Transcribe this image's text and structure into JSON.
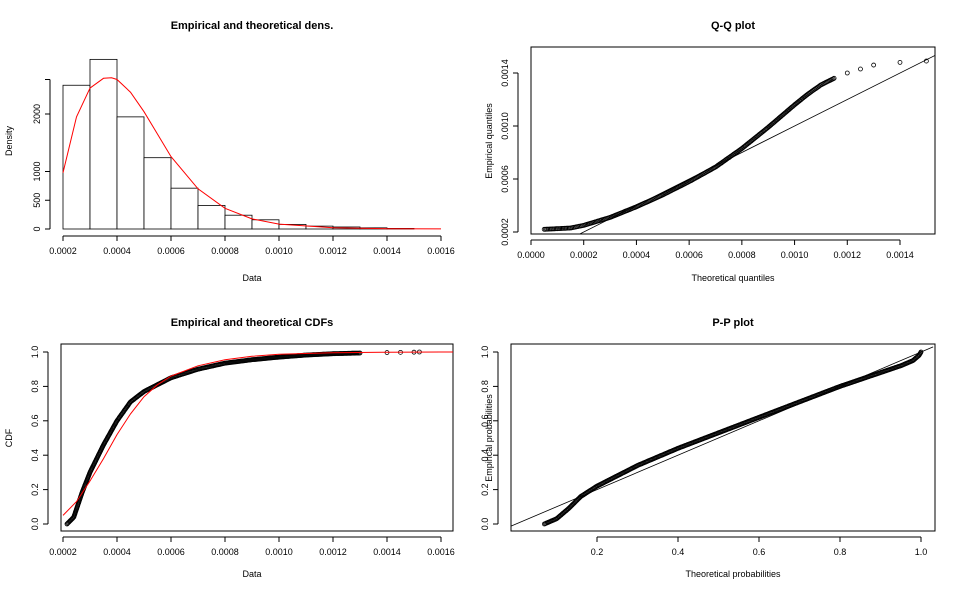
{
  "chart_data": [
    {
      "type": "bar",
      "title": "Empirical and theoretical dens.",
      "xlabel": "Data",
      "ylabel": "Density",
      "xlim": [
        0.0002,
        0.0016
      ],
      "ylim": [
        0,
        2600
      ],
      "xticks": [
        0.0002,
        0.0004,
        0.0006,
        0.0008,
        0.001,
        0.0012,
        0.0014,
        0.0016
      ],
      "xtick_labels": [
        "0.0002",
        "0.0004",
        "0.0006",
        "0.0008",
        "0.0010",
        "0.0012",
        "0.0014",
        "0.0016"
      ],
      "yticks": [
        0,
        500,
        1000,
        2000
      ],
      "ytick_labels": [
        "0",
        "500",
        "1000",
        "2000"
      ],
      "bin_edges": [
        0.0002,
        0.0003,
        0.0004,
        0.0005,
        0.0006,
        0.0007,
        0.0008,
        0.0009,
        0.001,
        0.0011,
        0.0012,
        0.0013,
        0.0014,
        0.0015
      ],
      "values": [
        2500,
        2950,
        1950,
        1240,
        710,
        410,
        240,
        160,
        80,
        50,
        35,
        20,
        10
      ],
      "density_curve": {
        "color": "#ff0000",
        "x": [
          0.0002,
          0.00025,
          0.0003,
          0.00035,
          0.00038,
          0.0004,
          0.00045,
          0.0005,
          0.00055,
          0.0006,
          0.0007,
          0.0008,
          0.0009,
          0.001,
          0.0012,
          0.0014,
          0.0016
        ],
        "y": [
          980,
          1950,
          2450,
          2620,
          2630,
          2600,
          2380,
          2040,
          1650,
          1260,
          700,
          360,
          175,
          85,
          20,
          5,
          1
        ]
      }
    },
    {
      "type": "scatter",
      "title": "Q-Q plot",
      "xlabel": "Theoretical quantiles",
      "ylabel": "Empirical quantiles",
      "xlim": [
        0.0,
        0.00155
      ],
      "ylim": [
        0.00019,
        0.00156
      ],
      "xticks": [
        0.0,
        0.0002,
        0.0004,
        0.0006,
        0.0008,
        0.001,
        0.0012,
        0.0014
      ],
      "xtick_labels": [
        "0.0000",
        "0.0002",
        "0.0004",
        "0.0006",
        "0.0008",
        "0.0010",
        "0.0012",
        "0.0014"
      ],
      "yticks": [
        0.0002,
        0.0006,
        0.001,
        0.0014
      ],
      "ytick_labels": [
        "0.0002",
        "0.0006",
        "0.0010",
        "0.0014"
      ],
      "reference_line": [
        [
          0.0,
          0.0
        ],
        [
          0.00155,
          0.00155
        ]
      ],
      "points": {
        "x": [
          5e-05,
          0.0001,
          0.00015,
          0.0002,
          0.0003,
          0.0004,
          0.0005,
          0.0006,
          0.0007,
          0.0008,
          0.0009,
          0.001,
          0.00105,
          0.0011,
          0.00115,
          0.0012,
          0.00125,
          0.0013,
          0.0014,
          0.0015
        ],
        "y": [
          0.00022,
          0.000225,
          0.00023,
          0.00025,
          0.00031,
          0.00039,
          0.00048,
          0.00058,
          0.00069,
          0.00083,
          0.00099,
          0.00116,
          0.00124,
          0.00131,
          0.00136,
          0.0014,
          0.00143,
          0.00146,
          0.00148,
          0.00149
        ]
      }
    },
    {
      "type": "scatter",
      "title": "Empirical and theoretical CDFs",
      "xlabel": "Data",
      "ylabel": "CDF",
      "xlim": [
        0.0002,
        0.0016
      ],
      "ylim": [
        0,
        1
      ],
      "xticks": [
        0.0002,
        0.0004,
        0.0006,
        0.0008,
        0.001,
        0.0012,
        0.0014,
        0.0016
      ],
      "xtick_labels": [
        "0.0002",
        "0.0004",
        "0.0006",
        "0.0008",
        "0.0010",
        "0.0012",
        "0.0014",
        "0.0016"
      ],
      "yticks": [
        0.0,
        0.2,
        0.4,
        0.6,
        0.8,
        1.0
      ],
      "ytick_labels": [
        "0.0",
        "0.2",
        "0.4",
        "0.6",
        "0.8",
        "1.0"
      ],
      "points": {
        "x": [
          0.000215,
          0.00024,
          0.00027,
          0.0003,
          0.00035,
          0.0004,
          0.00045,
          0.0005,
          0.0006,
          0.0007,
          0.0008,
          0.0009,
          0.001,
          0.0011,
          0.0012,
          0.0013,
          0.0014,
          0.00145,
          0.0015,
          0.00152
        ],
        "y": [
          0.0,
          0.04,
          0.18,
          0.3,
          0.46,
          0.6,
          0.71,
          0.77,
          0.85,
          0.9,
          0.935,
          0.955,
          0.97,
          0.982,
          0.99,
          0.994,
          0.997,
          0.998,
          0.999,
          1.0
        ]
      },
      "theoretical_cdf": {
        "color": "#ff0000",
        "x": [
          0.0002,
          0.00025,
          0.0003,
          0.00035,
          0.0004,
          0.00045,
          0.0005,
          0.00055,
          0.0006,
          0.0007,
          0.0008,
          0.0009,
          0.001,
          0.0012,
          0.0014,
          0.0016
        ],
        "y": [
          0.05,
          0.13,
          0.25,
          0.38,
          0.52,
          0.64,
          0.74,
          0.81,
          0.86,
          0.92,
          0.955,
          0.975,
          0.987,
          0.996,
          0.999,
          1.0
        ]
      }
    },
    {
      "type": "scatter",
      "title": "P-P plot",
      "xlabel": "Theoretical probabilities",
      "ylabel": "Empirical probabilities",
      "xlim": [
        0.04,
        1.03
      ],
      "ylim": [
        -0.04,
        1.04
      ],
      "xticks": [
        0.2,
        0.4,
        0.6,
        0.8,
        1.0
      ],
      "xtick_labels": [
        "0.2",
        "0.4",
        "0.6",
        "0.8",
        "1.0"
      ],
      "yticks": [
        0.0,
        0.2,
        0.4,
        0.6,
        0.8,
        1.0
      ],
      "ytick_labels": [
        "0.0",
        "0.2",
        "0.4",
        "0.6",
        "0.8",
        "1.0"
      ],
      "reference_line": [
        [
          0.0,
          0.0
        ],
        [
          1.03,
          1.03
        ]
      ],
      "points": {
        "x": [
          0.07,
          0.1,
          0.13,
          0.16,
          0.2,
          0.25,
          0.3,
          0.4,
          0.5,
          0.6,
          0.7,
          0.8,
          0.85,
          0.9,
          0.95,
          0.98,
          0.995,
          1.0
        ],
        "y": [
          0.0,
          0.03,
          0.09,
          0.16,
          0.22,
          0.28,
          0.34,
          0.44,
          0.53,
          0.62,
          0.71,
          0.8,
          0.84,
          0.88,
          0.92,
          0.95,
          0.98,
          1.0
        ]
      }
    }
  ]
}
